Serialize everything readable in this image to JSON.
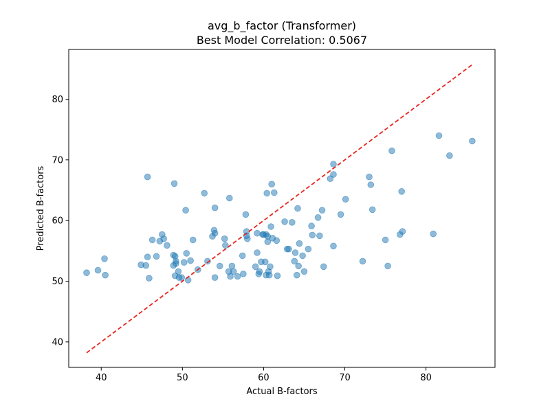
{
  "colors": {
    "point": "#1f77b4",
    "ref_line": "#e8251f",
    "axis": "#000000",
    "background": "#ffffff"
  },
  "chart_data": {
    "type": "scatter",
    "title": "avg_b_factor (Transformer)",
    "subtitle": "Best Model Correlation: 0.5067",
    "xlabel": "Actual B-factors",
    "ylabel": "Predicted B-factors",
    "xlim": [
      36,
      88.5
    ],
    "ylim": [
      35.8,
      88.2
    ],
    "xticks": [
      40,
      50,
      60,
      70,
      80
    ],
    "yticks": [
      40,
      50,
      60,
      70,
      80
    ],
    "grid": false,
    "reference_line": {
      "style": "dashed",
      "x": [
        38.2,
        85.7
      ],
      "y": [
        38.2,
        85.7
      ]
    },
    "points": [
      [
        38.2,
        51.4
      ],
      [
        39.6,
        51.8
      ],
      [
        40.4,
        53.7
      ],
      [
        40.5,
        51.0
      ],
      [
        44.9,
        52.7
      ],
      [
        45.5,
        52.6
      ],
      [
        45.7,
        67.2
      ],
      [
        45.7,
        54.0
      ],
      [
        45.9,
        50.5
      ],
      [
        46.3,
        56.8
      ],
      [
        46.8,
        54.1
      ],
      [
        47.2,
        56.6
      ],
      [
        47.5,
        57.7
      ],
      [
        47.7,
        57.0
      ],
      [
        48.1,
        55.9
      ],
      [
        48.9,
        54.3
      ],
      [
        48.9,
        52.6
      ],
      [
        49.0,
        66.1
      ],
      [
        49.1,
        50.9
      ],
      [
        49.1,
        54.1
      ],
      [
        49.2,
        53.3
      ],
      [
        49.2,
        52.9
      ],
      [
        49.5,
        51.6
      ],
      [
        49.6,
        50.6
      ],
      [
        49.9,
        50.6
      ],
      [
        50.2,
        53.1
      ],
      [
        50.4,
        61.7
      ],
      [
        50.5,
        54.6
      ],
      [
        50.7,
        50.2
      ],
      [
        51.0,
        53.4
      ],
      [
        51.3,
        56.8
      ],
      [
        51.9,
        51.9
      ],
      [
        52.7,
        64.5
      ],
      [
        53.1,
        53.3
      ],
      [
        53.7,
        57.4
      ],
      [
        53.9,
        58.4
      ],
      [
        54.0,
        57.9
      ],
      [
        54.0,
        62.1
      ],
      [
        54.0,
        50.6
      ],
      [
        54.6,
        52.5
      ],
      [
        55.2,
        57.0
      ],
      [
        55.3,
        55.9
      ],
      [
        55.7,
        51.6
      ],
      [
        55.8,
        63.7
      ],
      [
        55.9,
        50.8
      ],
      [
        56.1,
        52.5
      ],
      [
        56.3,
        51.6
      ],
      [
        56.8,
        50.8
      ],
      [
        57.4,
        54.2
      ],
      [
        57.5,
        51.2
      ],
      [
        57.8,
        61.0
      ],
      [
        57.9,
        57.5
      ],
      [
        57.9,
        58.2
      ],
      [
        58.0,
        57.0
      ],
      [
        59.0,
        52.4
      ],
      [
        59.2,
        54.7
      ],
      [
        59.2,
        57.9
      ],
      [
        59.4,
        51.2
      ],
      [
        59.5,
        51.6
      ],
      [
        59.7,
        53.2
      ],
      [
        59.9,
        57.7
      ],
      [
        60.0,
        57.7
      ],
      [
        60.2,
        53.2
      ],
      [
        60.3,
        57.7
      ],
      [
        60.3,
        51.0
      ],
      [
        60.4,
        64.5
      ],
      [
        60.5,
        57.4
      ],
      [
        60.5,
        56.5
      ],
      [
        60.6,
        51.6
      ],
      [
        60.7,
        51.0
      ],
      [
        60.8,
        52.4
      ],
      [
        60.9,
        59.0
      ],
      [
        61.0,
        66.0
      ],
      [
        61.1,
        57.1
      ],
      [
        61.3,
        64.6
      ],
      [
        61.6,
        56.7
      ],
      [
        61.7,
        50.9
      ],
      [
        62.6,
        59.8
      ],
      [
        62.9,
        55.3
      ],
      [
        63.1,
        55.3
      ],
      [
        63.5,
        59.7
      ],
      [
        63.8,
        53.3
      ],
      [
        63.9,
        54.7
      ],
      [
        64.1,
        51.0
      ],
      [
        64.2,
        62.0
      ],
      [
        64.3,
        52.5
      ],
      [
        64.4,
        56.2
      ],
      [
        64.8,
        54.2
      ],
      [
        65.0,
        51.6
      ],
      [
        65.5,
        55.3
      ],
      [
        65.9,
        59.1
      ],
      [
        66.0,
        57.6
      ],
      [
        66.7,
        60.5
      ],
      [
        66.9,
        57.5
      ],
      [
        67.2,
        61.7
      ],
      [
        67.4,
        52.4
      ],
      [
        68.2,
        66.9
      ],
      [
        68.6,
        67.6
      ],
      [
        68.6,
        69.3
      ],
      [
        68.6,
        55.8
      ],
      [
        69.5,
        61.0
      ],
      [
        70.1,
        63.5
      ],
      [
        72.2,
        53.3
      ],
      [
        73.0,
        67.2
      ],
      [
        73.2,
        65.9
      ],
      [
        73.4,
        61.8
      ],
      [
        75.0,
        56.8
      ],
      [
        75.3,
        52.5
      ],
      [
        75.8,
        71.5
      ],
      [
        76.8,
        57.7
      ],
      [
        77.0,
        64.8
      ],
      [
        77.1,
        58.2
      ],
      [
        80.9,
        57.8
      ],
      [
        81.6,
        74.0
      ],
      [
        82.9,
        70.7
      ],
      [
        85.7,
        73.1
      ]
    ]
  }
}
